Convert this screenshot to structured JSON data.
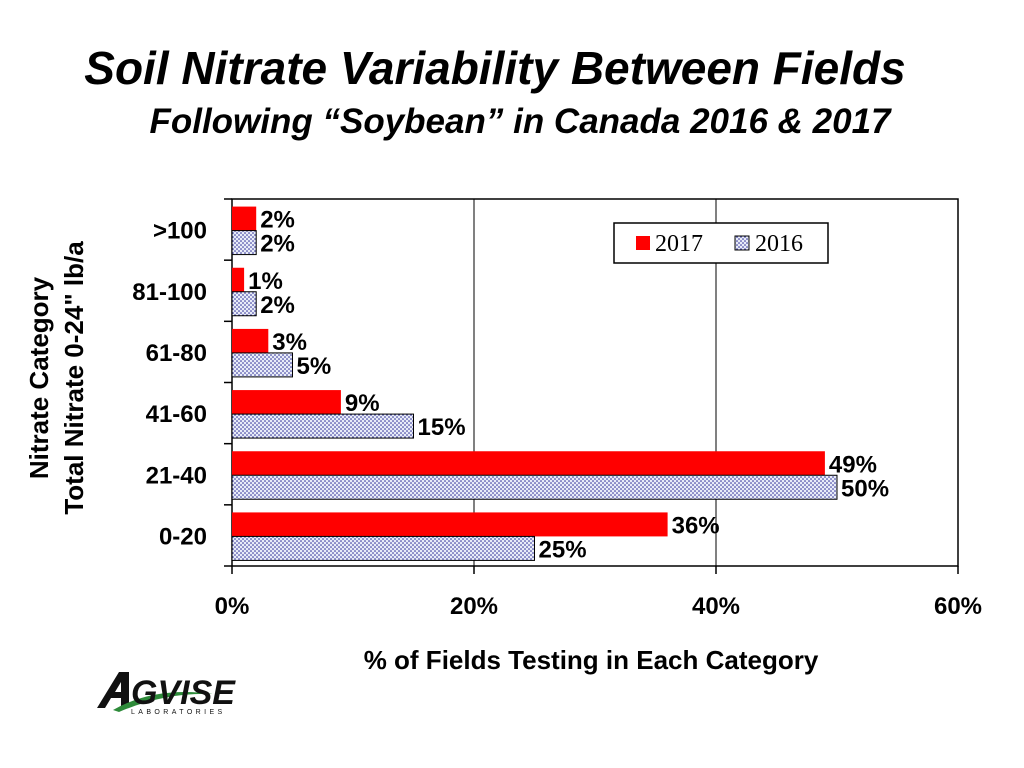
{
  "title": "Soil Nitrate Variability Between Fields",
  "subtitle": "Following “Soybean” in Canada 2016 & 2017",
  "logo": {
    "text": "AGVISE",
    "tagline": "LABORATORIES"
  },
  "colors": {
    "2017": "#ff0000",
    "2016_fill": "#e8ecf8",
    "2016_dots": "#1a1a8c"
  },
  "chart_data": {
    "type": "bar",
    "orientation": "horizontal",
    "categories": [
      ">100",
      "81-100",
      "61-80",
      "41-60",
      "21-40",
      "0-20"
    ],
    "series": [
      {
        "name": "2017",
        "values": [
          2,
          1,
          3,
          9,
          49,
          36
        ],
        "labels": [
          "2%",
          "1%",
          "3%",
          "9%",
          "49%",
          "36%"
        ]
      },
      {
        "name": "2016",
        "values": [
          2,
          2,
          5,
          15,
          50,
          25
        ],
        "labels": [
          "2%",
          "2%",
          "5%",
          "15%",
          "50%",
          "25%"
        ]
      }
    ],
    "xlim": [
      0,
      60
    ],
    "xticks": [
      "0%",
      "20%",
      "40%",
      "60%"
    ],
    "xlabel": "% of Fields Testing in Each Category",
    "ylabel_line1": "Nitrate Category",
    "ylabel_line2": "Total Nitrate 0-24\" lb/a",
    "legend": {
      "position": "top-right",
      "entries": [
        "2017",
        "2016"
      ]
    },
    "grid": "vertical"
  }
}
